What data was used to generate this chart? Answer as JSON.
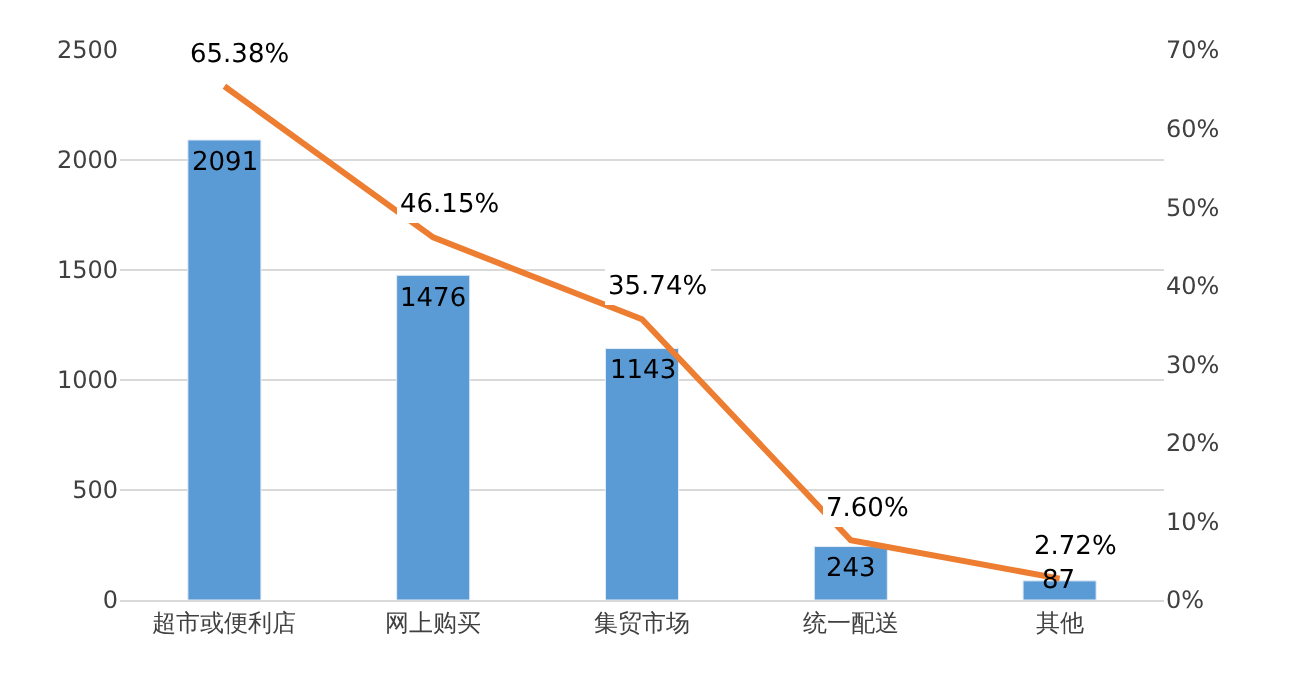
{
  "chart_data": {
    "type": "bar",
    "categories": [
      "超市或便利店",
      "网上购买",
      "集贸市场",
      "统一配送",
      "其他"
    ],
    "series": [
      {
        "color": "#5b9bd5",
        "values": [
          2091,
          1476,
          1143,
          243,
          87
        ],
        "value_labels": [
          "2091",
          "1476",
          "1143",
          "243",
          "87"
        ]
      },
      {
        "type": "line",
        "axis": "y2",
        "color": "#ed7d31",
        "values": [
          65.38,
          46.15,
          35.74,
          7.6,
          2.72
        ],
        "value_labels": [
          "65.38%",
          "46.15%",
          "35.74%",
          "7.60%",
          "2.72%"
        ],
        "marker": "none",
        "line_style": "solid"
      }
    ],
    "ylim": [
      0,
      2500
    ],
    "yticks": [
      0,
      500,
      1000,
      1500,
      2000,
      2500
    ],
    "y2lim": [
      0,
      70
    ],
    "y2ticks": [
      {
        "value": 0,
        "label": "0%"
      },
      {
        "value": 10,
        "label": "10%"
      },
      {
        "value": 20,
        "label": "20%"
      },
      {
        "value": 30,
        "label": "30%"
      },
      {
        "value": 40,
        "label": "40%"
      },
      {
        "value": 50,
        "label": "50%"
      },
      {
        "value": 60,
        "label": "60%"
      },
      {
        "value": 70,
        "label": "70%"
      }
    ],
    "grid": "y"
  }
}
